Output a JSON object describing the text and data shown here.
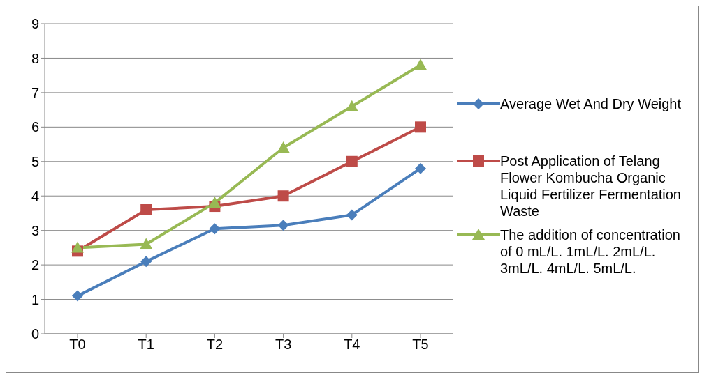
{
  "chart_data": {
    "type": "line",
    "categories": [
      "T0",
      "T1",
      "T2",
      "T3",
      "T4",
      "T5"
    ],
    "series": [
      {
        "name": "Average Wet And Dry Weight",
        "color": "#4a7ebb",
        "marker": "diamond",
        "values": [
          1.1,
          2.1,
          3.05,
          3.15,
          3.45,
          4.8
        ]
      },
      {
        "name": "Post Application of Telang Flower Kombucha Organic Liquid Fertilizer Fermentation Waste",
        "color": "#be4b48",
        "marker": "square",
        "values": [
          2.4,
          3.6,
          3.7,
          4.0,
          5.0,
          6.0
        ]
      },
      {
        "name": "The addition of concentration of 0 mL/L. 1mL/L. 2mL/L. 3mL/L. 4mL/L. 5mL/L.",
        "color": "#98b954",
        "marker": "triangle",
        "values": [
          2.5,
          2.6,
          3.8,
          5.4,
          6.6,
          7.8
        ]
      }
    ],
    "ylim": [
      0,
      9
    ],
    "yticks": [
      0,
      1,
      2,
      3,
      4,
      5,
      6,
      7,
      8,
      9
    ],
    "grid": "y",
    "legend": "right",
    "line_style": "solid"
  }
}
